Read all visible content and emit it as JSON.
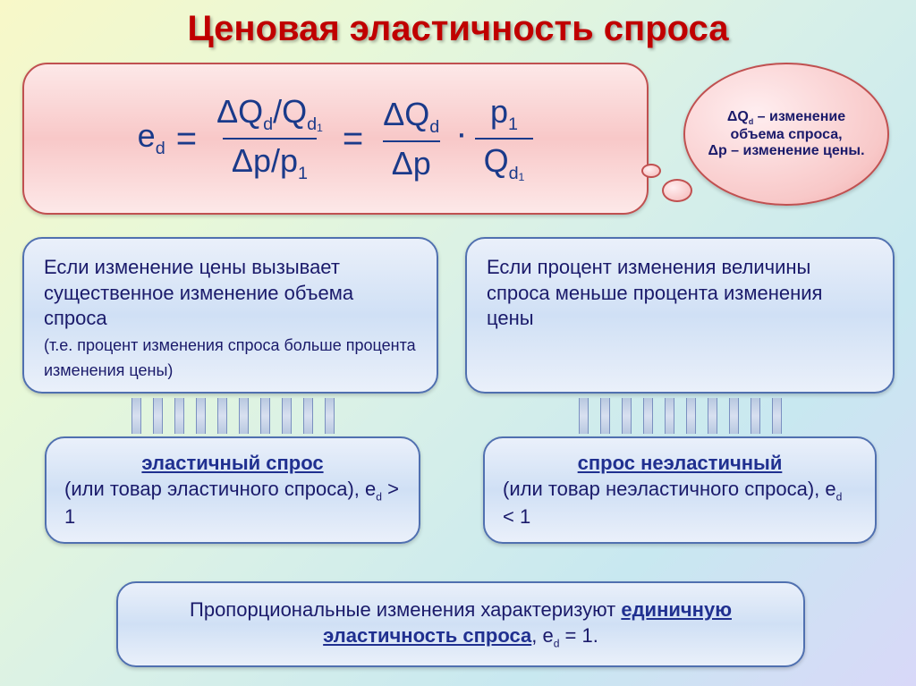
{
  "title": "Ценовая эластичность спроса",
  "colors": {
    "title_color": "#c00000",
    "text_color": "#1a1a6a",
    "formula_color": "#1a3a8a",
    "pink_bg_start": "#fde8e8",
    "pink_bg_mid": "#f8c8c8",
    "pink_border": "#c05050",
    "blue_bg_start": "#eaf0fa",
    "blue_bg_mid": "#d0e0f5",
    "blue_border": "#5070b0"
  },
  "formula": {
    "lhs": "e",
    "lhs_sub": "d",
    "term1_num": "ΔQ",
    "term1_num_sub": "d",
    "term1_num2": "/Q",
    "term1_num2_sub": "d₁",
    "term1_den": "Δp/p",
    "term1_den_sub": "1",
    "term2_num": "ΔQ",
    "term2_num_sub": "d",
    "term2_den": "Δp",
    "term3_num": "p",
    "term3_num_sub": "1",
    "term3_den": "Q",
    "term3_den_sub": "d₁"
  },
  "bubble": {
    "line1": "ΔQ",
    "line1_sub": "d",
    "line1_rest": " – изменение объема спроса,",
    "line2": "Δp – изменение цены."
  },
  "box_left_top": {
    "main": "Если изменение цены вызывает существенное изменение объема спроса",
    "note": "(т.е. процент изменения спроса больше процента изменения цены)"
  },
  "box_right_top": "Если процент изменения величины спроса меньше процента изменения цены",
  "box_left_bot": {
    "head": "эластичный спрос",
    "body": "(или товар эластичного спроса), e",
    "sub": "d",
    "cond": " > 1"
  },
  "box_right_bot": {
    "head": "спрос неэластичный",
    "body": "(или товар неэластичного спроса), e",
    "sub": "d",
    "cond": " < 1"
  },
  "bottom": {
    "pre": "Пропорциональные изменения характеризуют ",
    "uline": "единичную эластичность спроса",
    "post": ", e",
    "sub": "d",
    "eq": " = 1."
  }
}
